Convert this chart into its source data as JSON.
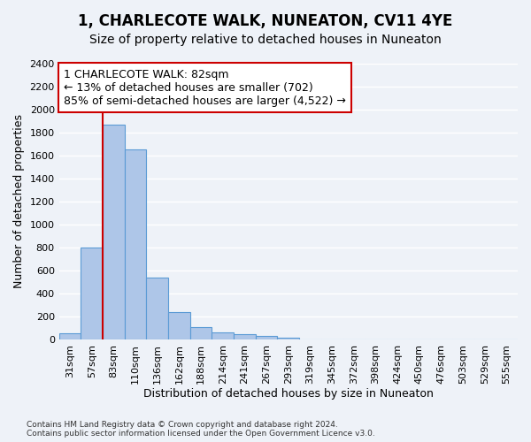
{
  "title": "1, CHARLECOTE WALK, NUNEATON, CV11 4YE",
  "subtitle": "Size of property relative to detached houses in Nuneaton",
  "xlabel": "Distribution of detached houses by size in Nuneaton",
  "ylabel": "Number of detached properties",
  "categories": [
    "31sqm",
    "57sqm",
    "83sqm",
    "110sqm",
    "136sqm",
    "162sqm",
    "188sqm",
    "214sqm",
    "241sqm",
    "267sqm",
    "293sqm",
    "319sqm",
    "345sqm",
    "372sqm",
    "398sqm",
    "424sqm",
    "450sqm",
    "476sqm",
    "503sqm",
    "529sqm",
    "555sqm"
  ],
  "values": [
    55,
    795,
    1870,
    1650,
    535,
    240,
    110,
    60,
    45,
    30,
    18,
    0,
    0,
    0,
    0,
    0,
    0,
    0,
    0,
    0,
    0
  ],
  "bar_color": "#aec6e8",
  "bar_edge_color": "#5b9bd5",
  "property_line_x": 1.5,
  "annotation_text": "1 CHARLECOTE WALK: 82sqm\n← 13% of detached houses are smaller (702)\n85% of semi-detached houses are larger (4,522) →",
  "annotation_box_color": "#ffffff",
  "annotation_box_edge": "#cc0000",
  "property_line_color": "#cc0000",
  "ylim": [
    0,
    2400
  ],
  "yticks": [
    0,
    200,
    400,
    600,
    800,
    1000,
    1200,
    1400,
    1600,
    1800,
    2000,
    2200,
    2400
  ],
  "footer_line1": "Contains HM Land Registry data © Crown copyright and database right 2024.",
  "footer_line2": "Contains public sector information licensed under the Open Government Licence v3.0.",
  "bg_color": "#eef2f8",
  "plot_bg_color": "#eef2f8",
  "grid_color": "#ffffff",
  "title_fontsize": 12,
  "subtitle_fontsize": 10,
  "axis_label_fontsize": 9,
  "tick_fontsize": 8,
  "footer_fontsize": 6.5
}
